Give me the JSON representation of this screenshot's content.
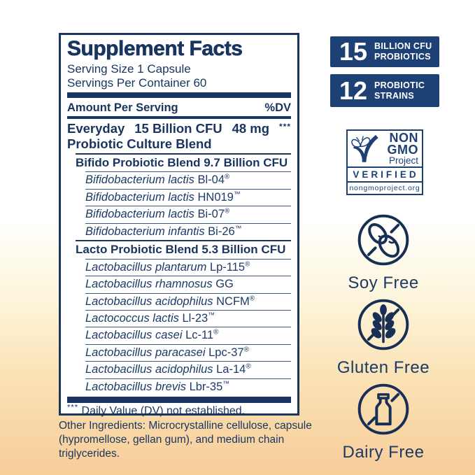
{
  "panel": {
    "title": "Supplement Facts",
    "serving_size": "Serving Size 1 Capsule",
    "servings_per_container": "Servings Per Container 60",
    "amount_header": "Amount Per Serving",
    "dv_header": "%DV",
    "main_row": {
      "name_line1": "Everyday",
      "amount": "15 Billion CFU",
      "weight": "48 mg",
      "dv": "***",
      "name_line2": "Probiotic Culture Blend"
    },
    "rows": [
      {
        "type": "blend",
        "text": "Bifido Probiotic Blend 9.7 Billion CFU"
      },
      {
        "type": "strain",
        "italic": "Bifidobacterium lactis",
        "code": "Bl-04",
        "mark": "®"
      },
      {
        "type": "strain",
        "italic": "Bifidobacterium lactis",
        "code": "HN019",
        "mark": "™"
      },
      {
        "type": "strain",
        "italic": "Bifidobacterium lactis",
        "code": "Bi-07",
        "mark": "®"
      },
      {
        "type": "strain",
        "italic": "Bifidobacterium infantis",
        "code": "Bi-26",
        "mark": "™"
      },
      {
        "type": "blend",
        "text": "Lacto Probiotic Blend 5.3 Billion CFU"
      },
      {
        "type": "strain",
        "italic": "Lactobacillus plantarum",
        "code": "Lp-115",
        "mark": "®"
      },
      {
        "type": "strain",
        "italic": "Lactobacillus rhamnosus",
        "code": "GG",
        "mark": ""
      },
      {
        "type": "strain",
        "italic": "Lactobacillus acidophilus",
        "code": "NCFM",
        "mark": "®"
      },
      {
        "type": "strain",
        "italic": "Lactococcus lactis",
        "code": "Ll-23",
        "mark": "™"
      },
      {
        "type": "strain",
        "italic": "Lactobacillus casei",
        "code": "Lc-11",
        "mark": "®"
      },
      {
        "type": "strain",
        "italic": "Lactobacillus paracasei",
        "code": "Lpc-37",
        "mark": "®"
      },
      {
        "type": "strain",
        "italic": "Lactobacillus acidophilus",
        "code": "La-14",
        "mark": "®"
      },
      {
        "type": "strain",
        "italic": "Lactobacillus brevis",
        "code": "Lbr-35",
        "mark": "™"
      }
    ],
    "footnote_stars": "***",
    "footnote": "Daily Value (DV) not established."
  },
  "other_ingredients": "Other Ingredients: Microcrystalline cellulose, capsule (hypromellose, gellan gum), and medium chain triglycerides.",
  "badges": [
    {
      "number": "15",
      "line1": "BILLION CFU",
      "line2": "PROBIOTICS"
    },
    {
      "number": "12",
      "line1": "PROBIOTIC",
      "line2": "STRAINS"
    }
  ],
  "seal": {
    "line1": "NON",
    "line2": "GMO",
    "line3": "Project",
    "verified": "VERIFIED",
    "url": "nongmoproject.org"
  },
  "claims": [
    {
      "icon": "soy-free-icon",
      "label": "Soy Free"
    },
    {
      "icon": "gluten-free-icon",
      "label": "Gluten Free"
    },
    {
      "icon": "dairy-free-icon",
      "label": "Dairy Free"
    }
  ],
  "colors": {
    "navy": "#18345f",
    "badge_navy": "#1d4175",
    "peach": "#f8cd99"
  }
}
